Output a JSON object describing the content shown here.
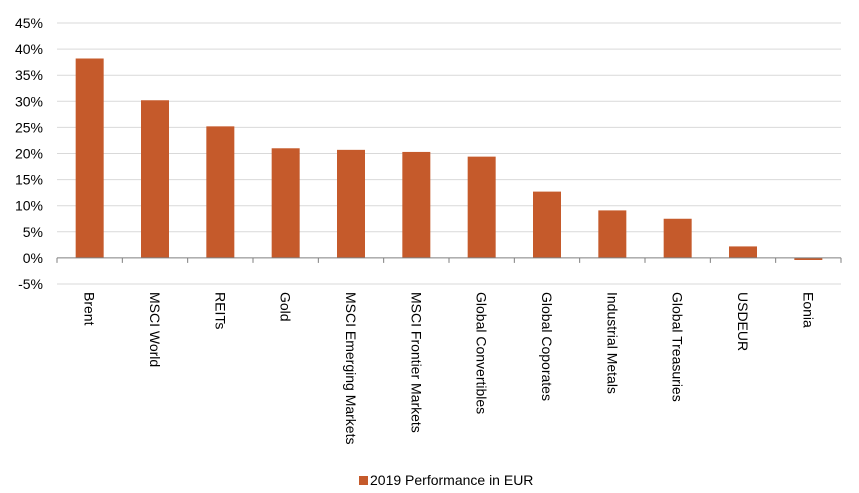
{
  "chart_data": {
    "type": "bar",
    "categories": [
      "Brent",
      "MSCI World",
      "REITs",
      "Gold",
      "MSCI Emerging Markets",
      "MSCI Frontier Markets",
      "Global Convertibles",
      "Global Coporates",
      "Industrial Metals",
      "Global Treasuries",
      "USDEUR",
      "Eonia"
    ],
    "series": [
      {
        "name": "2019 Performance in EUR",
        "values": [
          38.2,
          30.2,
          25.2,
          21.0,
          20.7,
          20.3,
          19.4,
          12.7,
          9.1,
          7.5,
          2.2,
          -0.4
        ],
        "color": "#C55A2B"
      }
    ],
    "ylim": [
      -5,
      45
    ],
    "yticks": [
      -5,
      0,
      5,
      10,
      15,
      20,
      25,
      30,
      35,
      40,
      45
    ],
    "ytick_labels": [
      "-5%",
      "0%",
      "5%",
      "10%",
      "15%",
      "20%",
      "25%",
      "30%",
      "35%",
      "40%",
      "45%"
    ],
    "grid": true,
    "legend_position": "bottom"
  }
}
